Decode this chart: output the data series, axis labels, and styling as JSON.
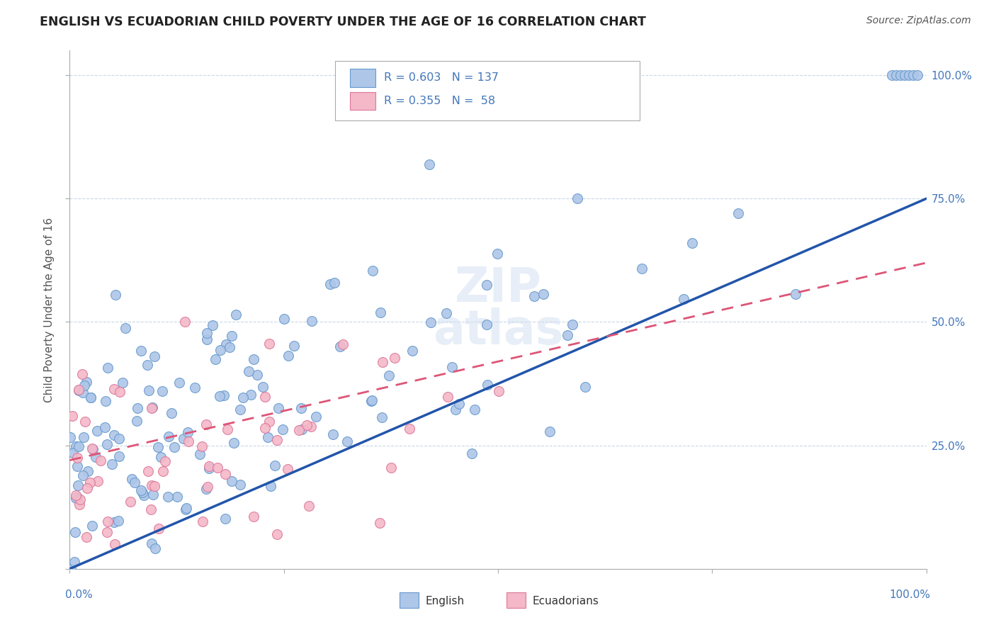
{
  "title": "ENGLISH VS ECUADORIAN CHILD POVERTY UNDER THE AGE OF 16 CORRELATION CHART",
  "source": "Source: ZipAtlas.com",
  "ylabel": "Child Poverty Under the Age of 16",
  "english_color": "#aec6e8",
  "english_edge": "#6699cc",
  "ecuadorian_color": "#f4b8c8",
  "ecuadorian_edge": "#dd7799",
  "trendline_english_color": "#2255aa",
  "trendline_ecuadorian_color": "#dd5577",
  "background_color": "#ffffff",
  "english_R": 0.603,
  "english_N": 137,
  "ecuadorian_R": 0.355,
  "ecuadorian_N": 58,
  "eng_seed": 7,
  "ecu_seed": 13,
  "legend_R1": "R = 0.603",
  "legend_N1": "N = 137",
  "legend_R2": "R = 0.355",
  "legend_N2": "N =  58",
  "ytick_color": "#4477bb",
  "title_color": "#222222",
  "source_color": "#555555"
}
